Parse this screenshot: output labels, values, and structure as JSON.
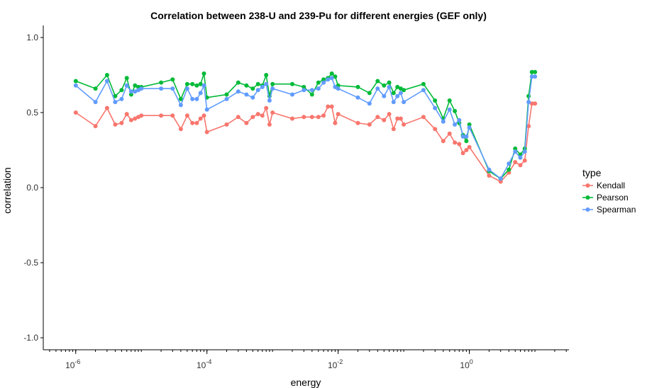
{
  "chart_data": {
    "type": "line",
    "title": "Correlation between 238-U and 239-Pu for different energies (GEF only)",
    "xlabel": "energy",
    "ylabel": "correlation",
    "xscale": "log",
    "xlim": [
      3.2e-07,
      33
    ],
    "ylim": [
      -1.08,
      1.08
    ],
    "grid": false,
    "legend_position": "right",
    "legend_title": "type",
    "x_ticks": [
      {
        "value": 1e-06,
        "base": "10",
        "exp": "-6"
      },
      {
        "value": 0.0001,
        "base": "10",
        "exp": "-4"
      },
      {
        "value": 0.01,
        "base": "10",
        "exp": "-2"
      },
      {
        "value": 1,
        "base": "10",
        "exp": "0"
      }
    ],
    "y_ticks": [
      {
        "value": 1.0,
        "label": "1.0"
      },
      {
        "value": 0.5,
        "label": "0.5"
      },
      {
        "value": 0.0,
        "label": "0.0"
      },
      {
        "value": -0.5,
        "label": "-0.5"
      },
      {
        "value": -1.0,
        "label": "-1.0"
      }
    ],
    "x": [
      1e-06,
      2e-06,
      3e-06,
      4e-06,
      5e-06,
      6e-06,
      7e-06,
      8e-06,
      9e-06,
      1e-05,
      2e-05,
      3e-05,
      4e-05,
      5e-05,
      6e-05,
      7e-05,
      8e-05,
      9e-05,
      0.0001,
      0.0002,
      0.0003,
      0.0004,
      0.0005,
      0.0006,
      0.0007,
      0.0008,
      0.0009,
      0.001,
      0.002,
      0.003,
      0.004,
      0.005,
      0.006,
      0.007,
      0.008,
      0.009,
      0.01,
      0.02,
      0.03,
      0.04,
      0.05,
      0.06,
      0.07,
      0.08,
      0.09,
      0.1,
      0.2,
      0.3,
      0.4,
      0.5,
      0.6,
      0.7,
      0.8,
      0.9,
      1,
      2,
      3,
      4,
      5,
      6,
      7,
      8,
      9,
      10
    ],
    "series": [
      {
        "name": "Kendall",
        "color": "#F8766D",
        "values": [
          0.5,
          0.41,
          0.53,
          0.42,
          0.43,
          0.49,
          0.45,
          0.46,
          0.47,
          0.48,
          0.48,
          0.48,
          0.39,
          0.48,
          0.43,
          0.43,
          0.46,
          0.48,
          0.37,
          0.42,
          0.47,
          0.43,
          0.47,
          0.49,
          0.48,
          0.53,
          0.42,
          0.5,
          0.46,
          0.47,
          0.47,
          0.47,
          0.48,
          0.54,
          0.54,
          0.43,
          0.49,
          0.43,
          0.42,
          0.47,
          0.45,
          0.49,
          0.39,
          0.46,
          0.46,
          0.42,
          0.47,
          0.39,
          0.31,
          0.36,
          0.3,
          0.29,
          0.23,
          0.25,
          0.27,
          0.08,
          0.04,
          0.1,
          0.17,
          0.15,
          0.18,
          0.41,
          0.56,
          0.56
        ]
      },
      {
        "name": "Pearson",
        "color": "#00BA38",
        "values": [
          0.71,
          0.66,
          0.75,
          0.61,
          0.65,
          0.73,
          0.62,
          0.68,
          0.67,
          0.67,
          0.7,
          0.72,
          0.59,
          0.69,
          0.69,
          0.68,
          0.69,
          0.76,
          0.6,
          0.62,
          0.7,
          0.68,
          0.66,
          0.69,
          0.68,
          0.75,
          0.61,
          0.69,
          0.69,
          0.67,
          0.62,
          0.7,
          0.72,
          0.73,
          0.76,
          0.74,
          0.68,
          0.67,
          0.63,
          0.71,
          0.68,
          0.7,
          0.63,
          0.67,
          0.66,
          0.65,
          0.69,
          0.58,
          0.46,
          0.58,
          0.51,
          0.43,
          0.35,
          0.31,
          0.42,
          0.11,
          0.06,
          0.12,
          0.26,
          0.22,
          0.26,
          0.61,
          0.77,
          0.77
        ]
      },
      {
        "name": "Spearman",
        "color": "#619CFF",
        "values": [
          0.68,
          0.57,
          0.71,
          0.57,
          0.59,
          0.68,
          0.64,
          0.64,
          0.65,
          0.66,
          0.66,
          0.66,
          0.55,
          0.66,
          0.59,
          0.59,
          0.63,
          0.68,
          0.52,
          0.59,
          0.64,
          0.62,
          0.6,
          0.65,
          0.67,
          0.69,
          0.58,
          0.66,
          0.62,
          0.65,
          0.65,
          0.66,
          0.7,
          0.72,
          0.73,
          0.67,
          0.66,
          0.6,
          0.56,
          0.66,
          0.61,
          0.67,
          0.57,
          0.61,
          0.63,
          0.57,
          0.65,
          0.53,
          0.44,
          0.52,
          0.42,
          0.45,
          0.34,
          0.34,
          0.4,
          0.12,
          0.06,
          0.16,
          0.24,
          0.2,
          0.24,
          0.57,
          0.74,
          0.74
        ]
      }
    ]
  }
}
